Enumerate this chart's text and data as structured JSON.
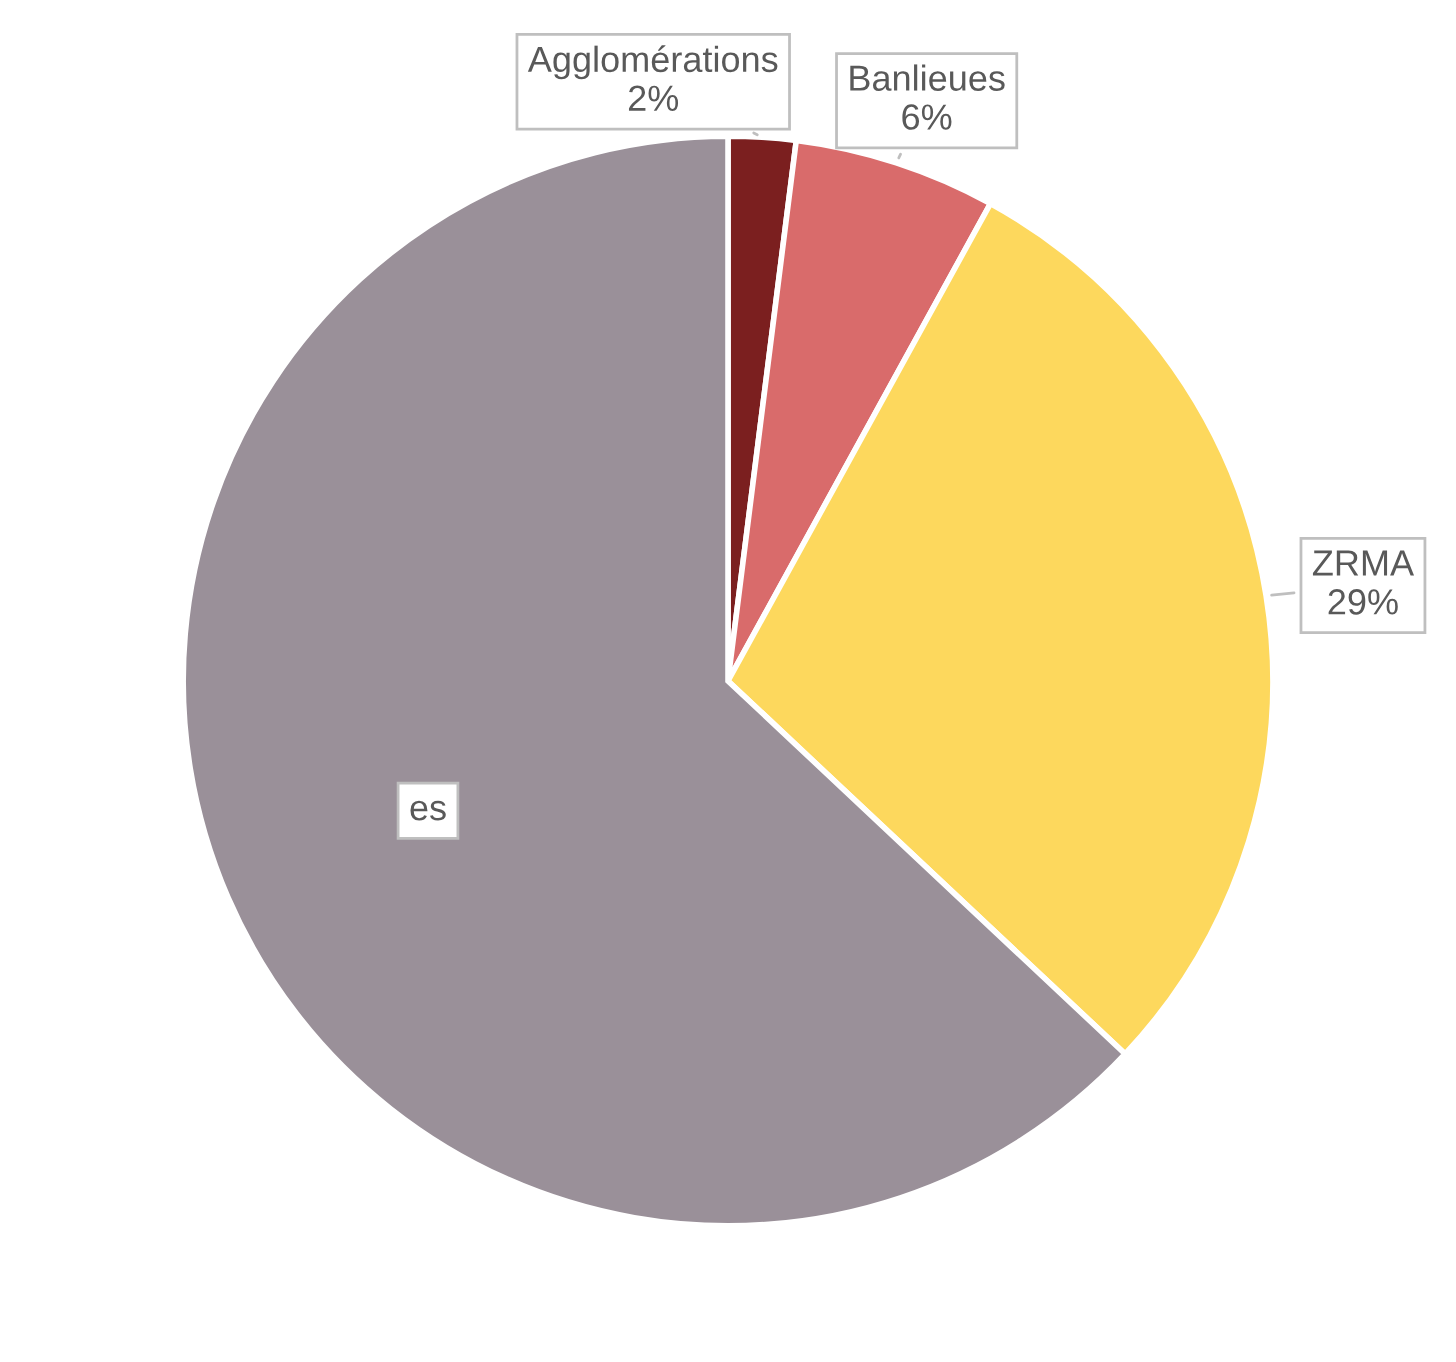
{
  "chart_data": {
    "type": "pie",
    "categories": [
      "Agglomérations",
      "Banlieues",
      "ZRMA",
      "es"
    ],
    "values": [
      2,
      6,
      29,
      63
    ],
    "colors": [
      "#7b1f1f",
      "#d96b6b",
      "#fdd85d",
      "#9a9099"
    ],
    "value_labels": [
      "2%",
      "6%",
      "29%",
      null
    ]
  }
}
